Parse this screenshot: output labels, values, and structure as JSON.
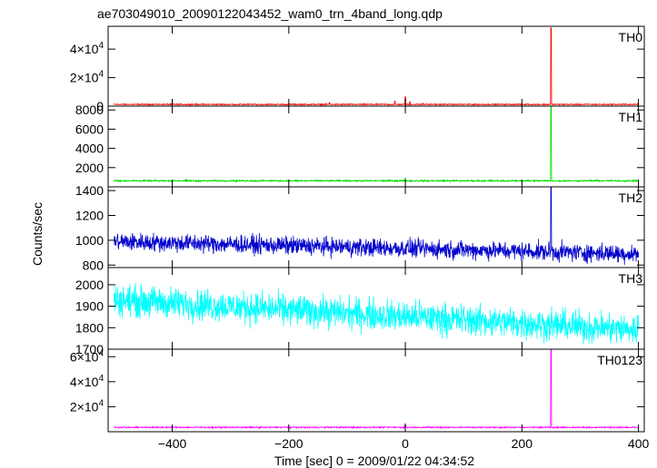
{
  "chart_data": {
    "type": "line",
    "title": "ae703049010_20090122043452_wam0_trn_4band_long.qdp",
    "xlabel": "Time [sec] 0 = 2009/01/22 04:34:52",
    "ylabel": "Counts/sec",
    "xlim": [
      -510,
      410
    ],
    "x_ticks": [
      -400,
      -200,
      0,
      200,
      400
    ],
    "x_tick_labels": [
      "−400",
      "−200",
      "0",
      "200",
      "400"
    ],
    "grid": false,
    "panels": [
      {
        "name": "TH0",
        "color": "#ff0000",
        "ylim": [
          0,
          56000
        ],
        "ticks": [
          0,
          20000,
          40000
        ],
        "tick_labels": [
          {
            "m": "",
            "e": "",
            "plain": "0"
          },
          {
            "m": "2×10",
            "e": "4"
          },
          {
            "m": "4×10",
            "e": "4"
          }
        ],
        "baseline": 1200,
        "noise": 300,
        "spikes": [
          [
            -130,
            2500
          ],
          [
            -18,
            3500
          ],
          [
            0,
            6500
          ],
          [
            8,
            3000
          ],
          [
            30,
            2000
          ],
          [
            210,
            1500
          ],
          [
            250,
            55000
          ]
        ]
      },
      {
        "name": "TH1",
        "color": "#00dd00",
        "ylim": [
          0,
          8400
        ],
        "ticks": [
          2000,
          4000,
          6000,
          8000
        ],
        "tick_labels": [
          {
            "plain": "2000"
          },
          {
            "plain": "4000"
          },
          {
            "plain": "6000"
          },
          {
            "plain": "8000"
          }
        ],
        "baseline": 630,
        "noise": 60,
        "spikes": [
          [
            0,
            900
          ],
          [
            250,
            8400
          ]
        ]
      },
      {
        "name": "TH2",
        "color": "#0000cc",
        "ylim": [
          780,
          1430
        ],
        "ticks": [
          800,
          1000,
          1200,
          1400
        ],
        "tick_labels": [
          {
            "plain": "800"
          },
          {
            "plain": "1000"
          },
          {
            "plain": "1200"
          },
          {
            "plain": "1400"
          }
        ],
        "trend": [
          [
            -500,
            990
          ],
          [
            400,
            890
          ]
        ],
        "noise": 55,
        "spikes": [
          [
            250,
            1430
          ]
        ]
      },
      {
        "name": "TH3",
        "color": "#00ffff",
        "ylim": [
          1700,
          2080
        ],
        "ticks": [
          1700,
          1800,
          1900,
          2000
        ],
        "tick_labels": [
          {
            "plain": "1700"
          },
          {
            "plain": "1800"
          },
          {
            "plain": "1900"
          },
          {
            "plain": "2000"
          }
        ],
        "trend": [
          [
            -500,
            1930
          ],
          [
            400,
            1790
          ]
        ],
        "noise": 55,
        "spikes": []
      },
      {
        "name": "TH0123",
        "color": "#ff00ff",
        "ylim": [
          0,
          66000
        ],
        "ticks": [
          20000,
          40000,
          60000
        ],
        "tick_labels": [
          {
            "m": "2×10",
            "e": "4"
          },
          {
            "m": "4×10",
            "e": "4"
          },
          {
            "m": "6×10",
            "e": "4"
          }
        ],
        "baseline": 3500,
        "noise": 400,
        "spikes": [
          [
            0,
            6500
          ],
          [
            250,
            66000
          ]
        ]
      }
    ]
  }
}
